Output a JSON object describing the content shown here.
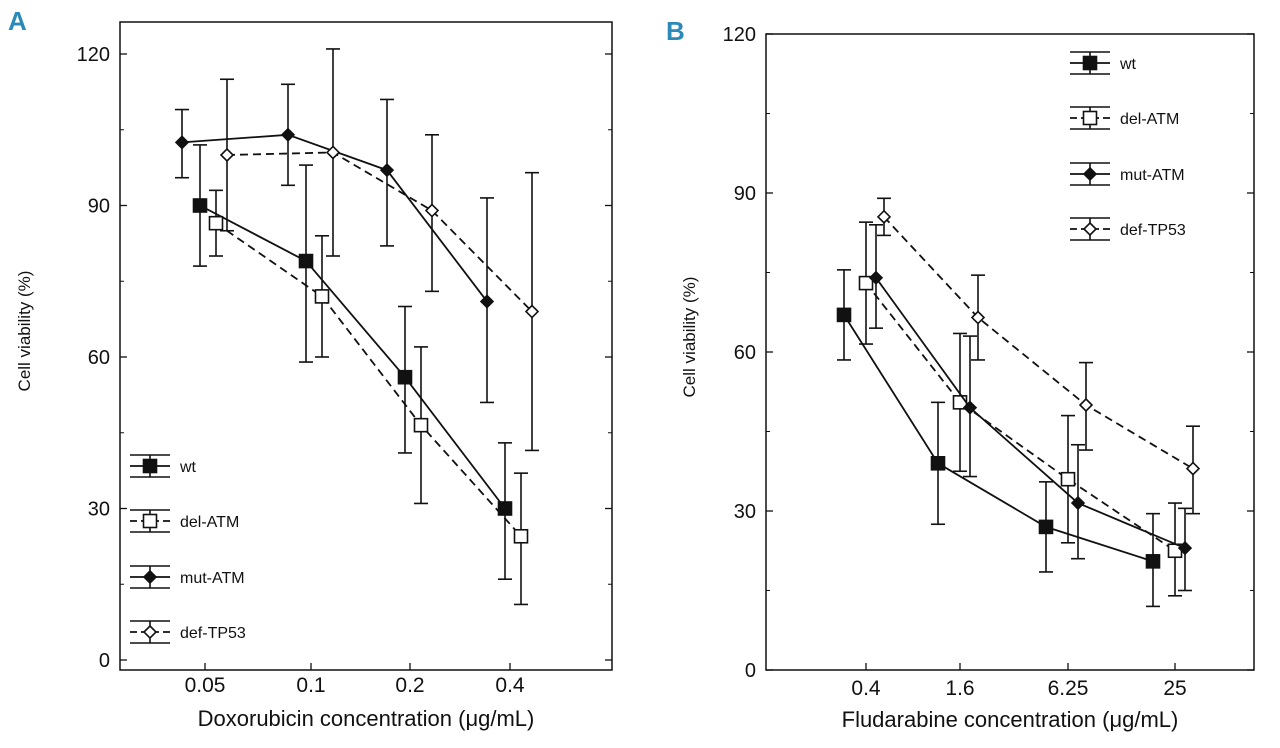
{
  "chart_data": [
    {
      "panel_label": "A",
      "type": "line",
      "categories": [
        "0.05",
        "0.1",
        "0.2",
        "0.4"
      ],
      "xlabel": "Doxorubicin concentration (μg/mL)",
      "ylabel": "Cell viability (%)",
      "ylim": [
        0,
        120
      ],
      "yticks": [
        "0",
        "30",
        "60",
        "90",
        "120"
      ],
      "legend_position": "bottom-left",
      "series": [
        {
          "name": "wt",
          "marker": "square-filled",
          "line": "solid",
          "values": [
            90,
            79,
            56,
            30
          ],
          "err_low": [
            78,
            59,
            41,
            16
          ],
          "err_high": [
            102,
            98,
            70,
            43
          ]
        },
        {
          "name": "del-ATM",
          "marker": "square-open",
          "line": "dashed",
          "values": [
            86.5,
            72,
            46.5,
            24.5
          ],
          "err_low": [
            80,
            60,
            31,
            11
          ],
          "err_high": [
            93,
            84,
            62,
            37
          ]
        },
        {
          "name": "mut-ATM",
          "marker": "diamond-filled",
          "line": "solid",
          "values": [
            102.5,
            104,
            97,
            71
          ],
          "err_low": [
            95.5,
            94,
            82,
            51
          ],
          "err_high": [
            109,
            114,
            111,
            91.5
          ]
        },
        {
          "name": "def-TP53",
          "marker": "diamond-open",
          "line": "dashed",
          "values": [
            100,
            100.5,
            89,
            69
          ],
          "err_low": [
            85,
            80,
            73,
            41.5
          ],
          "err_high": [
            115,
            121,
            104,
            96.5
          ]
        }
      ]
    },
    {
      "panel_label": "B",
      "type": "line",
      "categories": [
        "0.4",
        "1.6",
        "6.25",
        "25"
      ],
      "xlabel": "Fludarabine concentration (μg/mL)",
      "ylabel": "Cell viability (%)",
      "ylim": [
        0,
        120
      ],
      "yticks": [
        "0",
        "30",
        "60",
        "90",
        "120"
      ],
      "legend_position": "top-right",
      "series": [
        {
          "name": "wt",
          "marker": "square-filled",
          "line": "solid",
          "values": [
            67,
            39,
            27,
            20.5
          ],
          "err_low": [
            58.5,
            27.5,
            18.5,
            12
          ],
          "err_high": [
            75.5,
            50.5,
            35.5,
            29.5
          ]
        },
        {
          "name": "del-ATM",
          "marker": "square-open",
          "line": "dashed",
          "values": [
            73,
            50.5,
            36,
            22.5
          ],
          "err_low": [
            61.5,
            37.5,
            24,
            14
          ],
          "err_high": [
            84.5,
            63.5,
            48,
            31.5
          ]
        },
        {
          "name": "mut-ATM",
          "marker": "diamond-filled",
          "line": "solid",
          "values": [
            74,
            49.5,
            31.5,
            23
          ],
          "err_low": [
            64.5,
            36.5,
            21,
            15
          ],
          "err_high": [
            84,
            63,
            42.5,
            30.5
          ]
        },
        {
          "name": "def-TP53",
          "marker": "diamond-open",
          "line": "dashed",
          "values": [
            85.5,
            66.5,
            50,
            38
          ],
          "err_low": [
            82,
            58.5,
            41.5,
            29.5
          ],
          "err_high": [
            89,
            74.5,
            58,
            46
          ]
        }
      ]
    }
  ],
  "style": {
    "panel_label_color": "#2b8ab8",
    "ink_color": "#111111",
    "background": "#ffffff"
  }
}
